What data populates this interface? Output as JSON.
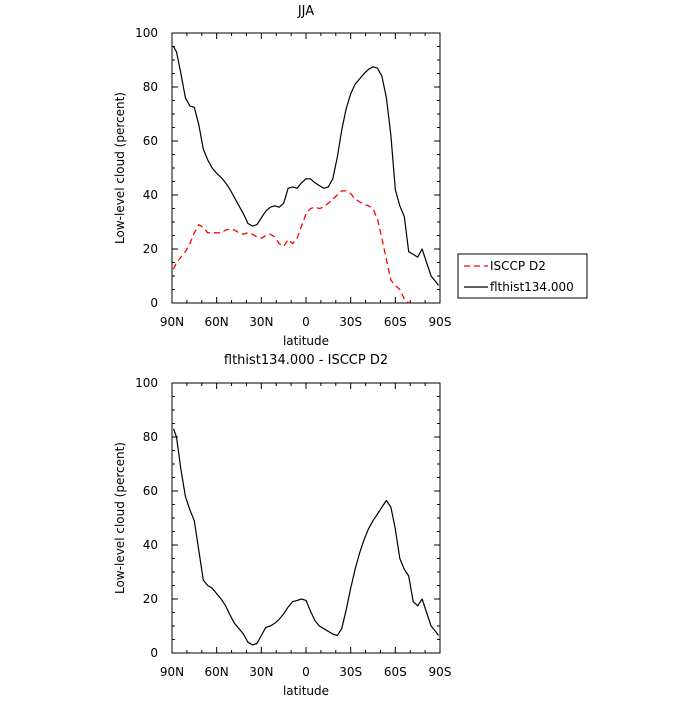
{
  "chart_data": [
    {
      "type": "line",
      "title": "JJA",
      "xlabel": "latitude",
      "ylabel": "Low-level cloud (percent)",
      "xlim": [
        90,
        -90
      ],
      "ylim": [
        0,
        100
      ],
      "x_tick_labels": [
        "90N",
        "60N",
        "30N",
        "0",
        "30S",
        "60S",
        "90S"
      ],
      "y_tick_labels": [
        "0",
        "20",
        "40",
        "60",
        "80",
        "100"
      ],
      "legend": "right",
      "x": [
        89,
        87,
        84,
        81,
        78,
        75,
        72,
        69,
        66,
        63,
        60,
        57,
        54,
        51,
        48,
        45,
        42,
        39,
        36,
        33,
        30,
        27,
        24,
        21,
        18,
        15,
        12,
        9,
        6,
        3,
        0,
        -3,
        -6,
        -9,
        -12,
        -15,
        -18,
        -21,
        -24,
        -27,
        -30,
        -33,
        -36,
        -39,
        -42,
        -45,
        -48,
        -51,
        -54,
        -57,
        -60,
        -63,
        -66,
        -69,
        -72,
        -75,
        -78,
        -81,
        -84,
        -87,
        -89
      ],
      "series": [
        {
          "name": "ISCCP D2",
          "color": "#ff0000",
          "dash": "dashed",
          "values": [
            12.5,
            15,
            17,
            19,
            22,
            26,
            29,
            28,
            26,
            26,
            26,
            26,
            27,
            27.5,
            27,
            26,
            25.5,
            26,
            25.5,
            24.5,
            24,
            25,
            25.5,
            24.5,
            22,
            21,
            23.5,
            22,
            24,
            28.5,
            33,
            35,
            35.5,
            35,
            35.5,
            37,
            38.5,
            40,
            41.5,
            41.5,
            40.5,
            38.5,
            37.5,
            36.5,
            36,
            35,
            31,
            24,
            16,
            8.5,
            6.5,
            5,
            1.5,
            0,
            null,
            null,
            null,
            null,
            null,
            null,
            null
          ]
        },
        {
          "name": "flthist134.000",
          "color": "#000000",
          "dash": "solid",
          "values": [
            95,
            93,
            85,
            76,
            73,
            72.5,
            66,
            57,
            53,
            50,
            48,
            46.5,
            44.5,
            42,
            39,
            36,
            33,
            29.5,
            28.5,
            29,
            31.5,
            34,
            35.5,
            36,
            35.5,
            37,
            42.5,
            43,
            42.5,
            44.5,
            46,
            46,
            44.5,
            43.5,
            42.5,
            43,
            46,
            54,
            64,
            72,
            77.5,
            81,
            83,
            85,
            86.5,
            87.5,
            87,
            84,
            76,
            62,
            42,
            36,
            32,
            19,
            18,
            17,
            20,
            15,
            10,
            8,
            6.5
          ]
        }
      ]
    },
    {
      "type": "line",
      "title": "flthist134.000 - ISCCP D2",
      "xlabel": "latitude",
      "ylabel": "Low-level cloud (percent)",
      "xlim": [
        90,
        -90
      ],
      "ylim": [
        0,
        100
      ],
      "x_tick_labels": [
        "90N",
        "60N",
        "30N",
        "0",
        "30S",
        "60S",
        "90S"
      ],
      "y_tick_labels": [
        "0",
        "20",
        "40",
        "60",
        "80",
        "100"
      ],
      "x": [
        89,
        87,
        84,
        81,
        78,
        75,
        72,
        69,
        66,
        63,
        60,
        57,
        54,
        51,
        48,
        45,
        42,
        39,
        36,
        33,
        30,
        27,
        24,
        21,
        18,
        15,
        12,
        9,
        6,
        3,
        0,
        -3,
        -6,
        -9,
        -12,
        -15,
        -18,
        -21,
        -24,
        -27,
        -30,
        -33,
        -36,
        -39,
        -42,
        -45,
        -48,
        -51,
        -54,
        -57,
        -60,
        -63,
        -66,
        -69,
        -72,
        -75,
        -78,
        -81,
        -84,
        -87,
        -89
      ],
      "series": [
        {
          "name": "",
          "color": "#000000",
          "dash": "solid",
          "values": [
            83,
            80,
            68,
            58,
            53,
            49,
            38,
            27,
            25,
            24,
            22,
            20,
            17.5,
            14,
            11,
            9,
            7,
            4,
            3,
            3.5,
            6.5,
            9.5,
            10,
            11,
            12.5,
            14.5,
            17,
            19,
            19.5,
            20,
            19.5,
            15.5,
            12,
            10,
            9,
            8,
            7,
            6.5,
            9,
            16,
            24,
            31,
            37,
            42,
            46,
            49,
            51.5,
            54,
            56.5,
            54,
            46,
            35,
            31,
            28.5,
            19,
            17.5,
            20,
            15,
            10,
            8,
            6.5
          ]
        }
      ]
    }
  ]
}
